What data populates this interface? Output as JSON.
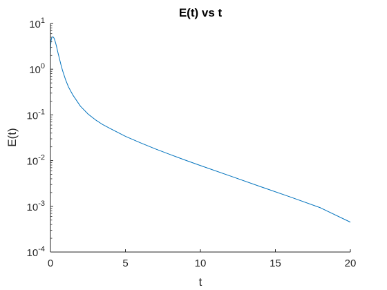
{
  "chart_data": {
    "type": "line",
    "title": "E(t) vs t",
    "xlabel": "t",
    "ylabel": "E(t)",
    "xlim": [
      0,
      20
    ],
    "ylim": [
      0.0001,
      10
    ],
    "y_scale": "log",
    "grid": false,
    "x_ticks": [
      {
        "value": 0,
        "label": "0"
      },
      {
        "value": 5,
        "label": "5"
      },
      {
        "value": 10,
        "label": "10"
      },
      {
        "value": 15,
        "label": "15"
      },
      {
        "value": 20,
        "label": "20"
      }
    ],
    "y_ticks": [
      {
        "value": 0.0001,
        "base": "10",
        "exp": "-4"
      },
      {
        "value": 0.001,
        "base": "10",
        "exp": "-3"
      },
      {
        "value": 0.01,
        "base": "10",
        "exp": "-2"
      },
      {
        "value": 0.1,
        "base": "10",
        "exp": "-1"
      },
      {
        "value": 1,
        "base": "10",
        "exp": "0"
      },
      {
        "value": 10,
        "base": "10",
        "exp": "1"
      }
    ],
    "series": [
      {
        "color": "#0072bd",
        "x": [
          0,
          0.02,
          0.05,
          0.1,
          0.15,
          0.2,
          0.25,
          0.3,
          0.35,
          0.4,
          0.45,
          0.5,
          0.6,
          0.7,
          0.8,
          1.0,
          1.2,
          1.5,
          2.0,
          2.5,
          3.0,
          3.5,
          4.0,
          5.0,
          6.0,
          7.0,
          8.0,
          9.0,
          10.0,
          12.0,
          14.0,
          16.0,
          18.0,
          20.0
        ],
        "y": [
          1.9,
          3.4,
          4.4,
          5.0,
          5.1,
          5.0,
          4.7,
          4.2,
          3.7,
          3.2,
          2.7,
          2.3,
          1.7,
          1.25,
          0.95,
          0.6,
          0.41,
          0.27,
          0.155,
          0.105,
          0.078,
          0.061,
          0.05,
          0.034,
          0.0245,
          0.018,
          0.0135,
          0.0102,
          0.0078,
          0.0046,
          0.0027,
          0.0016,
          0.00093,
          0.00045
        ]
      }
    ]
  }
}
